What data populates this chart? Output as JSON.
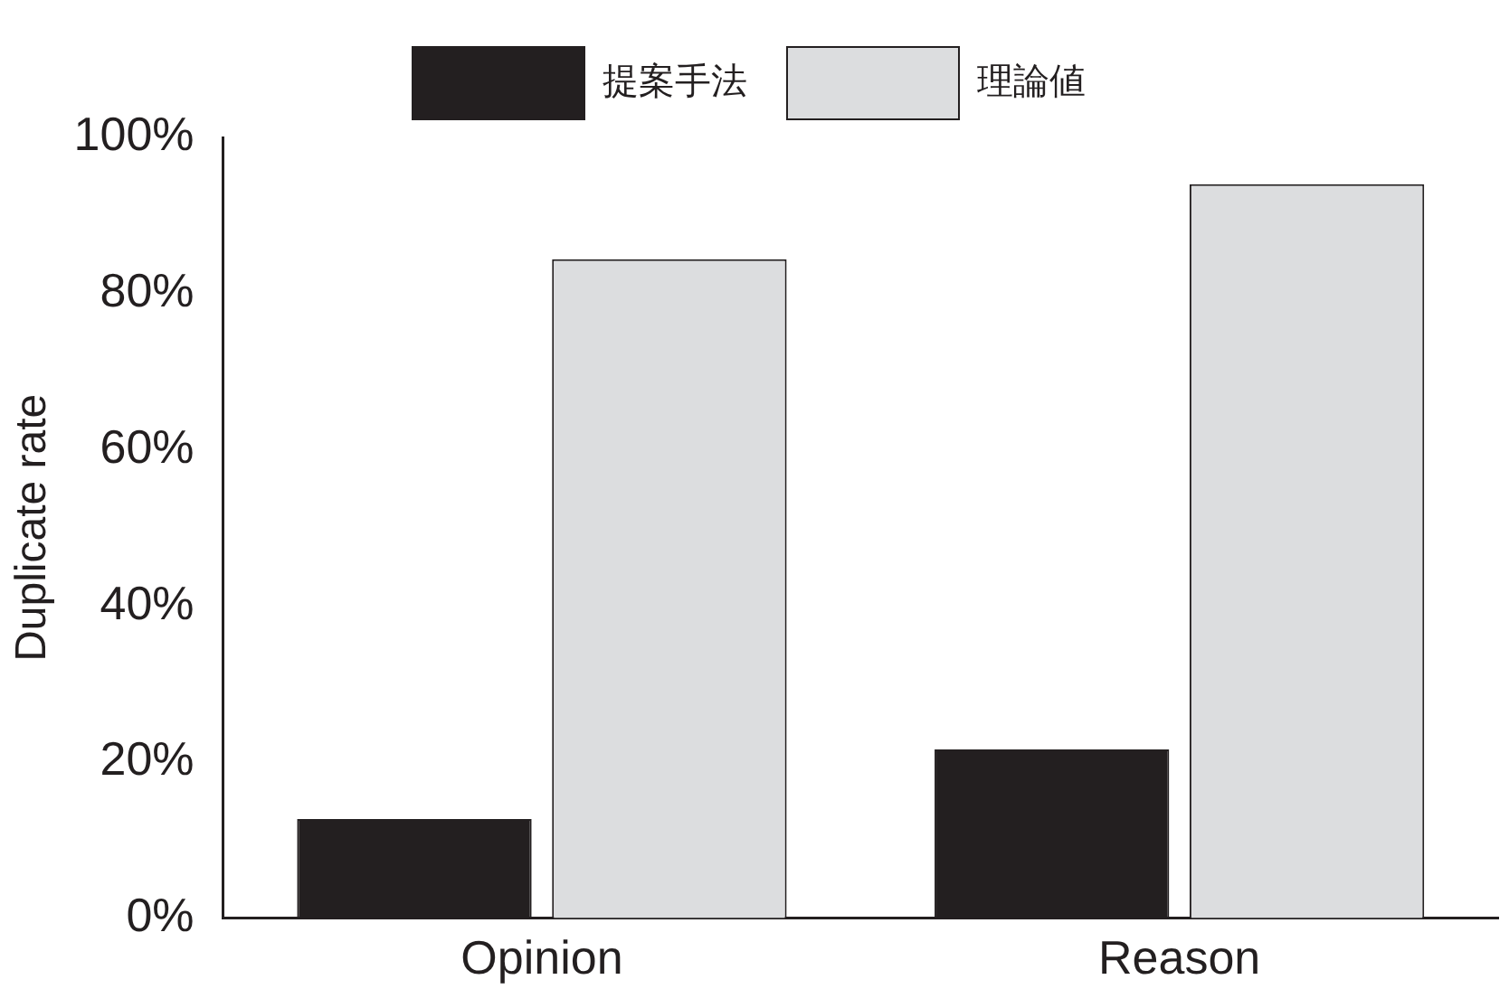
{
  "chart_data": {
    "type": "bar",
    "ylabel": "Duplicate rate",
    "categories": [
      "Opinion",
      "Reason"
    ],
    "series": [
      {
        "name": "提案手法",
        "color": "#231f20",
        "values": [
          12.7,
          21.6
        ]
      },
      {
        "name": "理論値",
        "color": "#dcdddf",
        "values": [
          84.4,
          94.0
        ]
      }
    ],
    "ylim": [
      0,
      100
    ],
    "yticks": [
      {
        "value": 0,
        "label": "0%"
      },
      {
        "value": 20,
        "label": "20%"
      },
      {
        "value": 40,
        "label": "40%"
      },
      {
        "value": 60,
        "label": "60%"
      },
      {
        "value": 80,
        "label": "80%"
      },
      {
        "value": 100,
        "label": "100%"
      }
    ],
    "grid": false,
    "legend": "top"
  }
}
